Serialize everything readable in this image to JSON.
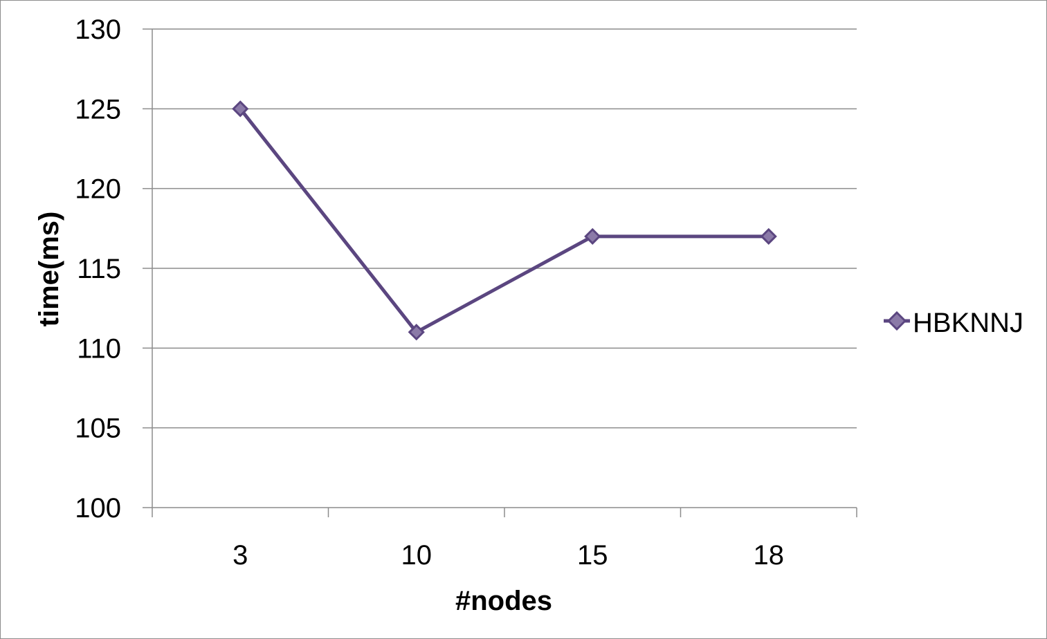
{
  "chart_data": {
    "type": "line",
    "categories": [
      "3",
      "10",
      "15",
      "18"
    ],
    "series": [
      {
        "name": "HBKNNJ",
        "values": [
          125,
          111,
          117,
          117
        ],
        "color": "#5b4680"
      }
    ],
    "xlabel": "#nodes",
    "ylabel": "time(ms)",
    "ylim": [
      100,
      130
    ],
    "yticks": [
      100,
      105,
      110,
      115,
      120,
      125,
      130
    ],
    "grid": "horizontal",
    "legend_position": "right",
    "marker": "diamond-icon"
  }
}
